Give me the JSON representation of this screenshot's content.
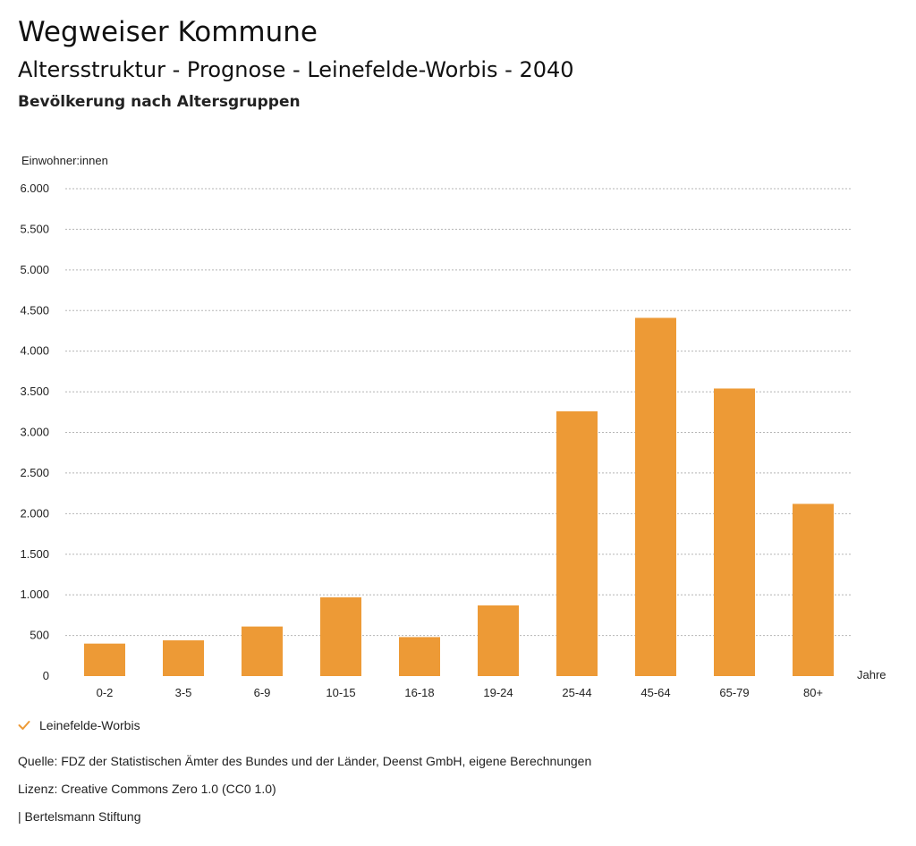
{
  "header": {
    "title": "Wegweiser Kommune",
    "subtitle": "Altersstruktur - Prognose - Leinefelde-Worbis - 2040",
    "subtitle2": "Bevölkerung nach Altersgruppen"
  },
  "chart_data": {
    "type": "bar",
    "title": "Altersstruktur - Prognose - Leinefelde-Worbis - 2040",
    "subtitle": "Bevölkerung nach Altersgruppen",
    "ylabel": "Einwohner:innen",
    "xlabel": "Jahre",
    "categories": [
      "0-2",
      "3-5",
      "6-9",
      "10-15",
      "16-18",
      "19-24",
      "25-44",
      "45-64",
      "65-79",
      "80+"
    ],
    "series": [
      {
        "name": "Leinefelde-Worbis",
        "values": [
          400,
          440,
          610,
          970,
          480,
          870,
          3260,
          4410,
          3540,
          2120
        ]
      }
    ],
    "ylim": [
      0,
      6000
    ],
    "yticks": [
      0,
      500,
      1000,
      1500,
      2000,
      2500,
      3000,
      3500,
      4000,
      4500,
      5000,
      5500,
      6000
    ],
    "ytick_labels": [
      "0",
      "500",
      "1.000",
      "1.500",
      "2.000",
      "2.500",
      "3.000",
      "3.500",
      "4.000",
      "4.500",
      "5.000",
      "5.500",
      "6.000"
    ],
    "grid": true,
    "bar_color": "#ED9A36",
    "legend_position": "bottom-left"
  },
  "legend": {
    "label": "Leinefelde-Worbis",
    "icon": "check-icon",
    "color": "#ED9A36"
  },
  "footer": {
    "source": "Quelle: FDZ der Statistischen Ämter des Bundes und der Länder, Deenst GmbH, eigene Berechnungen",
    "license": "Lizenz: Creative Commons Zero 1.0 (CC0 1.0)",
    "publisher": "| Bertelsmann Stiftung"
  }
}
